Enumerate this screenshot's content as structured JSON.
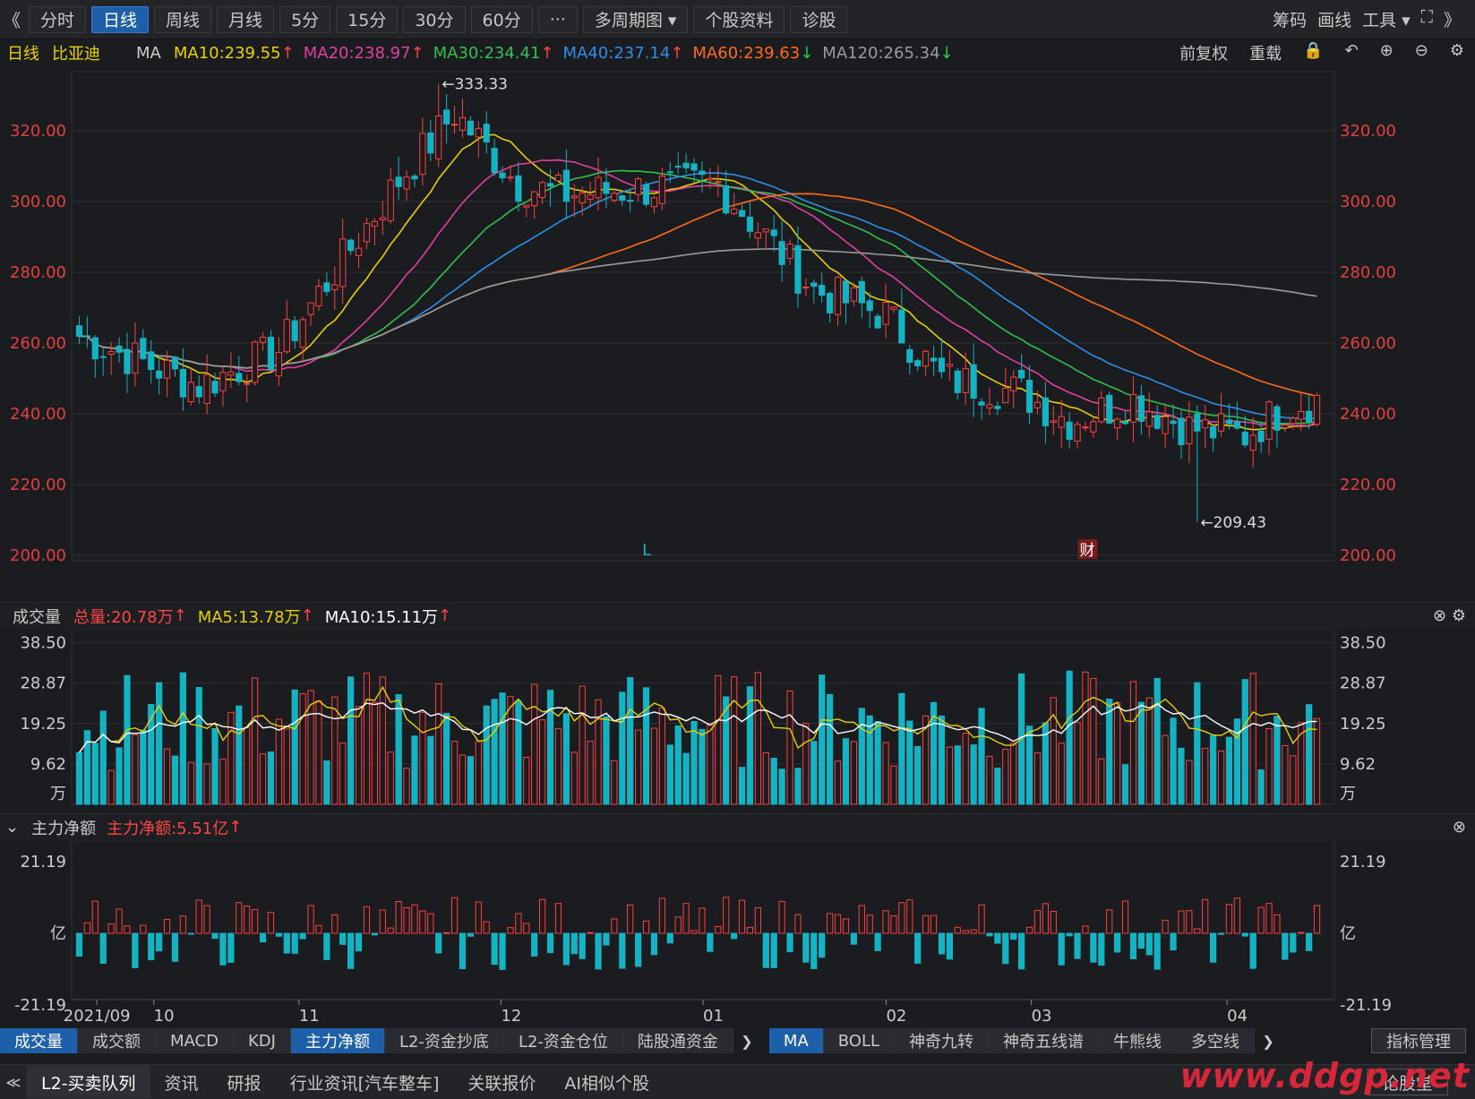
{
  "toolbar": {
    "back": "《",
    "items": [
      "分时",
      "日线",
      "周线",
      "月线",
      "5分",
      "15分",
      "30分",
      "60分",
      "···",
      "多周期图 ▾",
      "个股资料",
      "诊股"
    ],
    "active": 1,
    "right": [
      "筹码",
      "画线",
      "工具 ▾",
      "⛶",
      "》"
    ]
  },
  "mabar": {
    "period": "日线",
    "stock": "比亚迪",
    "ma_label": "MA",
    "ma": [
      {
        "label": "MA10:239.55",
        "arrow": "up",
        "color": "#e8d000"
      },
      {
        "label": "MA20:238.97",
        "arrow": "up",
        "color": "#e040a0"
      },
      {
        "label": "MA30:234.41",
        "arrow": "up",
        "color": "#30c050"
      },
      {
        "label": "MA40:237.14",
        "arrow": "up",
        "color": "#2d8fe8"
      },
      {
        "label": "MA60:239.63",
        "arrow": "down",
        "color": "#ff6a1a"
      },
      {
        "label": "MA120:265.34",
        "arrow": "down",
        "color": "#9a9a9a"
      }
    ],
    "tools": [
      "前复权",
      "重载"
    ]
  },
  "price_axis": {
    "ticks": [
      "320.00",
      "300.00",
      "280.00",
      "260.00",
      "240.00",
      "220.00",
      "200.00"
    ],
    "high_label": "←333.33",
    "low_label": "←209.43",
    "event_marks": [
      "L",
      "财"
    ]
  },
  "volume": {
    "title": "成交量",
    "total": "总量:20.78万",
    "ma5": "MA5:13.78万",
    "ma10": "MA10:15.11万",
    "ticks": [
      "38.50",
      "28.87",
      "19.25",
      "9.62"
    ],
    "unit": "万"
  },
  "netflow": {
    "title": "主力净额",
    "value": "主力净额:5.51亿",
    "ticks": [
      "21.19",
      "亿",
      "-21.19"
    ]
  },
  "xaxis": [
    "2021/09",
    "10",
    "11",
    "12",
    "01",
    "02",
    "03",
    "04"
  ],
  "chart_data": {
    "type": "candlestick",
    "title": "比亚迪 日线",
    "y_range": [
      200,
      335
    ],
    "high": 333.33,
    "low": 209.43,
    "last_ma": {
      "MA10": 239.55,
      "MA20": 238.97,
      "MA30": 234.41,
      "MA40": 237.14,
      "MA60": 239.63,
      "MA120": 265.34
    },
    "volume_range": [
      0,
      38.5
    ],
    "netflow_range": [
      -21.19,
      21.19
    ]
  },
  "tabs1": {
    "left": [
      "成交量",
      "成交额",
      "MACD",
      "KDJ",
      "主力净额",
      "L2-资金抄底",
      "L2-资金仓位",
      "陆股通资金"
    ],
    "left_on": [
      0,
      4
    ],
    "right": [
      "MA",
      "BOLL",
      "神奇九转",
      "神奇五线谱",
      "牛熊线",
      "多空线"
    ],
    "right_on": [
      0
    ],
    "manage": "指标管理"
  },
  "tabs2": {
    "items": [
      "L2-买卖队列",
      "资讯",
      "研报",
      "行业资讯[汽车整车]",
      "关联报价",
      "AI相似个股"
    ],
    "right": "论股堂",
    "watermark": "www.ddgp.net"
  }
}
